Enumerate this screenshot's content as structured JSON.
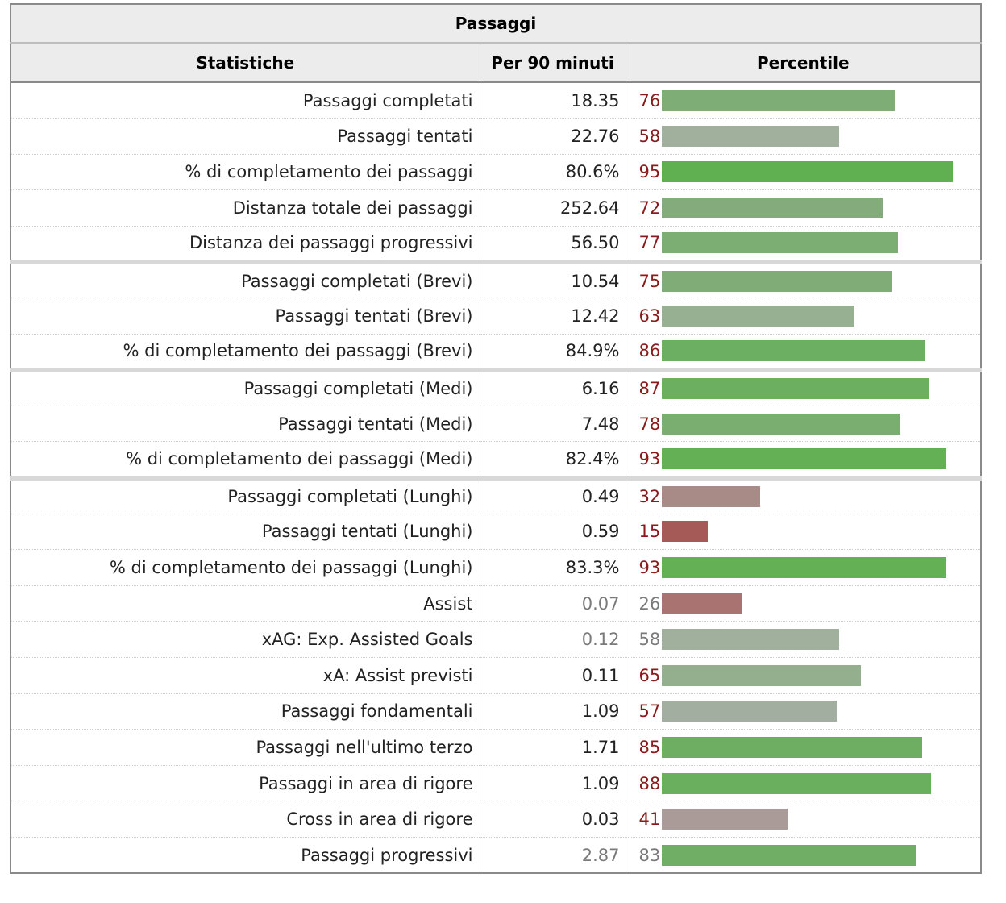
{
  "table": {
    "caption": "Passaggi",
    "headers": [
      "Statistiche",
      "Per 90 minuti",
      "Percentile"
    ],
    "rows": [
      {
        "label": "Passaggi completati",
        "value": "18.35",
        "percentile": "76",
        "bar_color": "#7fad76",
        "value_muted": false,
        "pct_muted": false
      },
      {
        "label": "Passaggi tentati",
        "value": "22.76",
        "percentile": "58",
        "bar_color": "#a0b09c",
        "value_muted": false,
        "pct_muted": false
      },
      {
        "label": "% di completamento dei passaggi",
        "value": "80.6%",
        "percentile": "95",
        "bar_color": "#60b051",
        "value_muted": false,
        "pct_muted": false
      },
      {
        "label": "Distanza totale dei passaggi",
        "value": "252.64",
        "percentile": "72",
        "bar_color": "#83ab7c",
        "value_muted": false,
        "pct_muted": false
      },
      {
        "label": "Distanza dei passaggi progressivi",
        "value": "56.50",
        "percentile": "77",
        "bar_color": "#7cad72",
        "value_muted": false,
        "pct_muted": false
      },
      {
        "label": "Passaggi completati (Brevi)",
        "value": "10.54",
        "percentile": "75",
        "bar_color": "#80ad77",
        "value_muted": false,
        "pct_muted": false,
        "sep": true
      },
      {
        "label": "Passaggi tentati (Brevi)",
        "value": "12.42",
        "percentile": "63",
        "bar_color": "#97b092",
        "value_muted": false,
        "pct_muted": false
      },
      {
        "label": "% di completamento dei passaggi (Brevi)",
        "value": "84.9%",
        "percentile": "86",
        "bar_color": "#6daf62",
        "value_muted": false,
        "pct_muted": false
      },
      {
        "label": "Passaggi completati (Medi)",
        "value": "6.16",
        "percentile": "87",
        "bar_color": "#6caf61",
        "value_muted": false,
        "pct_muted": false,
        "sep": true
      },
      {
        "label": "Passaggi tentati (Medi)",
        "value": "7.48",
        "percentile": "78",
        "bar_color": "#7aad70",
        "value_muted": false,
        "pct_muted": false
      },
      {
        "label": "% di completamento dei passaggi (Medi)",
        "value": "82.4%",
        "percentile": "93",
        "bar_color": "#63b055",
        "value_muted": false,
        "pct_muted": false
      },
      {
        "label": "Passaggi completati (Lunghi)",
        "value": "0.49",
        "percentile": "32",
        "bar_color": "#a88a87",
        "value_muted": false,
        "pct_muted": false,
        "sep": true
      },
      {
        "label": "Passaggi tentati (Lunghi)",
        "value": "0.59",
        "percentile": "15",
        "bar_color": "#a65a58",
        "value_muted": false,
        "pct_muted": false
      },
      {
        "label": "% di completamento dei passaggi (Lunghi)",
        "value": "83.3%",
        "percentile": "93",
        "bar_color": "#63b055",
        "value_muted": false,
        "pct_muted": false
      },
      {
        "label": "Assist",
        "value": "0.07",
        "percentile": "26",
        "bar_color": "#a87370",
        "value_muted": true,
        "pct_muted": true
      },
      {
        "label": "xAG: Exp. Assisted Goals",
        "value": "0.12",
        "percentile": "58",
        "bar_color": "#a0b09c",
        "value_muted": true,
        "pct_muted": true
      },
      {
        "label": "xA: Assist previsti",
        "value": "0.11",
        "percentile": "65",
        "bar_color": "#94af8e",
        "value_muted": false,
        "pct_muted": false
      },
      {
        "label": "Passaggi fondamentali",
        "value": "1.09",
        "percentile": "57",
        "bar_color": "#a2aea0",
        "value_muted": false,
        "pct_muted": false
      },
      {
        "label": "Passaggi nell'ultimo terzo",
        "value": "1.71",
        "percentile": "85",
        "bar_color": "#6dae63",
        "value_muted": false,
        "pct_muted": false
      },
      {
        "label": "Passaggi in area di rigore",
        "value": "1.09",
        "percentile": "88",
        "bar_color": "#69af5d",
        "value_muted": false,
        "pct_muted": false
      },
      {
        "label": "Cross in area di rigore",
        "value": "0.03",
        "percentile": "41",
        "bar_color": "#aa9a98",
        "value_muted": false,
        "pct_muted": false
      },
      {
        "label": "Passaggi progressivi",
        "value": "2.87",
        "percentile": "83",
        "bar_color": "#70ae66",
        "value_muted": true,
        "pct_muted": true
      }
    ]
  }
}
